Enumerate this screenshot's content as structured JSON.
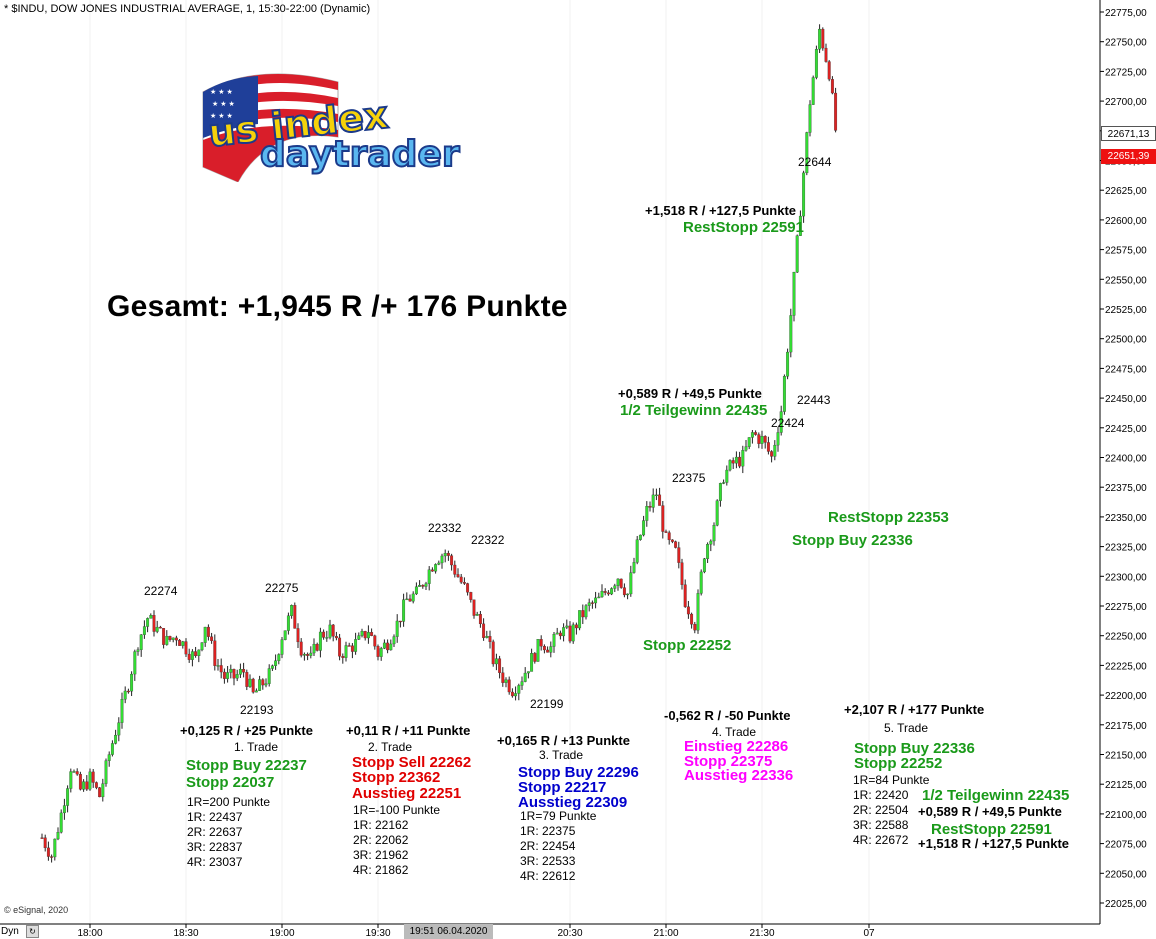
{
  "header": {
    "title": "* $INDU, DOW JONES INDUSTRIAL AVERAGE, 1, 15:30-22:00 (Dynamic)"
  },
  "copyright": "© eSignal, 2020",
  "summary": "Gesamt: +1,945 R /+ 176 Punkte",
  "logo": {
    "line1": "us index",
    "line2": "daytrader"
  },
  "price_tags": {
    "upper": "22671,13",
    "lower": "22651,39"
  },
  "axis_footer": {
    "dyn_label": "Dyn",
    "cursor_label": "19:51 06.04.2020"
  },
  "price_labels": [
    "22274",
    "22275",
    "22193",
    "22332",
    "22322",
    "22199",
    "22375",
    "22424",
    "22443",
    "22644"
  ],
  "annotations": {
    "right_mid": {
      "rest": "RestStopp 22353",
      "stopbuy": "Stopp Buy 22336"
    },
    "stopp_mid": "Stopp 22252",
    "top_r": {
      "line1": "+1,518 R / +127,5 Punkte",
      "line2": "RestStopp 22591"
    },
    "mid_r": {
      "line1": "+0,589 R / +49,5 Punkte",
      "line2": "1/2 Teilgewinn 22435"
    }
  },
  "trades": [
    {
      "result": "+0,125 R / +25 Punkte",
      "name": "1. Trade",
      "actions": [
        "Stopp Buy 22237",
        "Stopp 22037"
      ],
      "levels": [
        "1R=200 Punkte",
        "1R: 22437",
        "2R: 22637",
        "3R: 22837",
        "4R: 23037"
      ]
    },
    {
      "result": "+0,11 R / +11 Punkte",
      "name": "2. Trade",
      "actions": [
        "Stopp Sell 22262",
        "Stopp 22362",
        "Ausstieg 22251"
      ],
      "levels": [
        "1R=-100 Punkte",
        "1R: 22162",
        "2R: 22062",
        "3R: 21962",
        "4R: 21862"
      ]
    },
    {
      "result": "+0,165 R / +13 Punkte",
      "name": "3. Trade",
      "actions": [
        "Stopp Buy 22296",
        "Stopp 22217",
        "Ausstieg 22309"
      ],
      "levels": [
        "1R=79 Punkte",
        "1R: 22375",
        "2R: 22454",
        "3R: 22533",
        "4R: 22612"
      ]
    },
    {
      "result": "-0,562 R / -50 Punkte",
      "name": "4. Trade",
      "actions": [
        "Einstieg 22286",
        "Stopp 22375",
        "Ausstieg 22336"
      ],
      "levels": []
    },
    {
      "result": "+2,107 R / +177 Punkte",
      "name": "5. Trade",
      "actions": [
        "Stopp Buy 22336",
        "Stopp 22252"
      ],
      "levels": [
        "1R=84 Punkte",
        "1R: 22420",
        "2R: 22504",
        "3R: 22588",
        "4R: 22672"
      ]
    }
  ],
  "trade5_side": [
    "1/2 Teilgewinn 22435",
    "+0,589 R / +49,5 Punkte",
    "RestStopp 22591",
    "+1,518 R / +127,5 Punkte"
  ],
  "colors": {
    "up": "#33dd33",
    "down": "#dd2222",
    "green_text": "#1a9a1a",
    "red_text": "#e00000",
    "blue_text": "#0000cc",
    "magenta_text": "#ff00ff"
  },
  "chart_data": {
    "type": "candlestick",
    "symbol": "$INDU",
    "interval_minutes": 1,
    "x_tick_labels": [
      "18:00",
      "18:30",
      "19:00",
      "19:30",
      "20:30",
      "21:00",
      "21:30",
      "07"
    ],
    "y_tick_labels": [
      "22775,00",
      "22750,00",
      "22725,00",
      "22700,00",
      "22675,00",
      "22650,00",
      "22625,00",
      "22600,00",
      "22575,00",
      "22550,00",
      "22525,00",
      "22500,00",
      "22475,00",
      "22450,00",
      "22425,00",
      "22400,00",
      "22375,00",
      "22350,00",
      "22325,00",
      "22300,00",
      "22275,00",
      "22250,00",
      "22225,00",
      "22200,00",
      "22175,00",
      "22150,00",
      "22125,00",
      "22100,00",
      "22075,00",
      "22050,00",
      "22025,00"
    ],
    "ylim": [
      22010,
      22785
    ],
    "close_path": [
      [
        "17:45",
        22080
      ],
      [
        "17:48",
        22065
      ],
      [
        "17:51",
        22100
      ],
      [
        "17:54",
        22140
      ],
      [
        "17:57",
        22120
      ],
      [
        "18:00",
        22130
      ],
      [
        "18:03",
        22115
      ],
      [
        "18:06",
        22150
      ],
      [
        "18:09",
        22180
      ],
      [
        "18:12",
        22210
      ],
      [
        "18:15",
        22245
      ],
      [
        "18:18",
        22265
      ],
      [
        "18:21",
        22255
      ],
      [
        "18:24",
        22245
      ],
      [
        "18:27",
        22250
      ],
      [
        "18:30",
        22240
      ],
      [
        "18:33",
        22230
      ],
      [
        "18:36",
        22260
      ],
      [
        "18:39",
        22230
      ],
      [
        "18:42",
        22215
      ],
      [
        "18:45",
        22215
      ],
      [
        "18:48",
        22220
      ],
      [
        "18:51",
        22200
      ],
      [
        "18:54",
        22210
      ],
      [
        "18:57",
        22220
      ],
      [
        "19:00",
        22250
      ],
      [
        "19:03",
        22270
      ],
      [
        "19:06",
        22240
      ],
      [
        "19:09",
        22230
      ],
      [
        "19:12",
        22250
      ],
      [
        "19:15",
        22255
      ],
      [
        "19:18",
        22235
      ],
      [
        "19:21",
        22240
      ],
      [
        "19:24",
        22245
      ],
      [
        "19:27",
        22255
      ],
      [
        "19:30",
        22235
      ],
      [
        "19:33",
        22245
      ],
      [
        "19:36",
        22260
      ],
      [
        "19:39",
        22280
      ],
      [
        "19:42",
        22285
      ],
      [
        "19:45",
        22300
      ],
      [
        "19:48",
        22315
      ],
      [
        "19:51",
        22320
      ],
      [
        "19:54",
        22305
      ],
      [
        "19:57",
        22290
      ],
      [
        "20:00",
        22270
      ],
      [
        "20:03",
        22255
      ],
      [
        "20:06",
        22230
      ],
      [
        "20:09",
        22215
      ],
      [
        "20:12",
        22205
      ],
      [
        "20:15",
        22215
      ],
      [
        "20:18",
        22230
      ],
      [
        "20:21",
        22245
      ],
      [
        "20:24",
        22240
      ],
      [
        "20:27",
        22255
      ],
      [
        "20:30",
        22250
      ],
      [
        "20:33",
        22265
      ],
      [
        "20:36",
        22275
      ],
      [
        "20:39",
        22280
      ],
      [
        "20:42",
        22290
      ],
      [
        "20:45",
        22300
      ],
      [
        "20:48",
        22285
      ],
      [
        "20:51",
        22325
      ],
      [
        "20:54",
        22355
      ],
      [
        "20:57",
        22370
      ],
      [
        "21:00",
        22330
      ],
      [
        "21:03",
        22320
      ],
      [
        "21:06",
        22280
      ],
      [
        "21:09",
        22260
      ],
      [
        "21:12",
        22320
      ],
      [
        "21:15",
        22345
      ],
      [
        "21:18",
        22385
      ],
      [
        "21:21",
        22395
      ],
      [
        "21:24",
        22400
      ],
      [
        "21:27",
        22420
      ],
      [
        "21:30",
        22415
      ],
      [
        "21:33",
        22400
      ],
      [
        "21:36",
        22440
      ],
      [
        "21:39",
        22520
      ],
      [
        "21:42",
        22610
      ],
      [
        "21:45",
        22700
      ],
      [
        "21:48",
        22760
      ],
      [
        "21:51",
        22725
      ],
      [
        "21:54",
        22651
      ]
    ]
  }
}
